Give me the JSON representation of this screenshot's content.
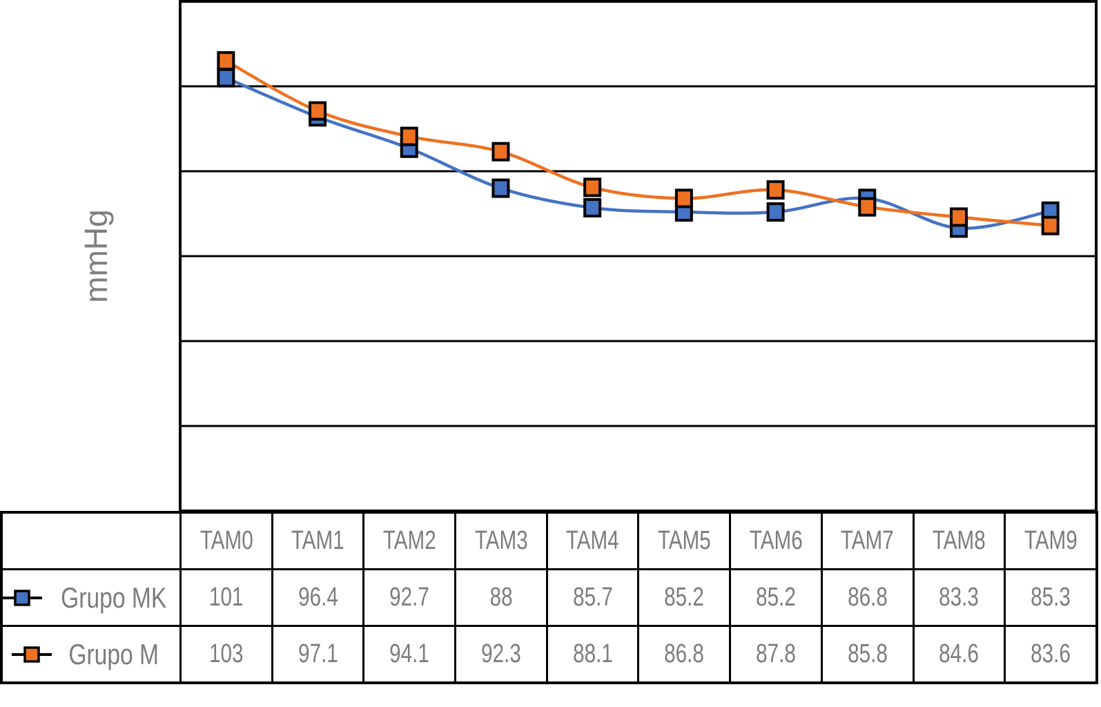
{
  "chart": {
    "y_axis_title": "mmHg",
    "colors": {
      "series_blue": "#4472C4",
      "series_orange": "#EE7122",
      "marker_border": "#000000",
      "gridline": "#000000",
      "plot_border": "#000000",
      "table_border": "#000000",
      "text_gray": "#7C7C7C",
      "axis_title_gray": "#7F7F7F",
      "background": "#FFFFFF"
    }
  },
  "chart_data": {
    "type": "line",
    "title": "",
    "xlabel": "",
    "ylabel": "mmHg",
    "categories": [
      "TAM0",
      "TAM1",
      "TAM2",
      "TAM3",
      "TAM4",
      "TAM5",
      "TAM6",
      "TAM7",
      "TAM8",
      "TAM9"
    ],
    "series": [
      {
        "name": "Grupo MK",
        "color": "#4472C4",
        "values": [
          101,
          96.4,
          92.7,
          88,
          85.7,
          85.2,
          85.2,
          86.8,
          83.3,
          85.3
        ]
      },
      {
        "name": "Grupo M",
        "color": "#EE7122",
        "values": [
          103,
          97.1,
          94.1,
          92.3,
          88.1,
          86.8,
          87.8,
          85.8,
          84.6,
          83.6
        ]
      }
    ],
    "ylim": [
      50,
      110
    ],
    "gridline_values": [
      100,
      90,
      80,
      70,
      60
    ],
    "y_tick_labels_visible": false,
    "grid": "horizontal-only",
    "line_style": "smooth",
    "marker": "square",
    "legend_position": "data-table-left-column"
  }
}
